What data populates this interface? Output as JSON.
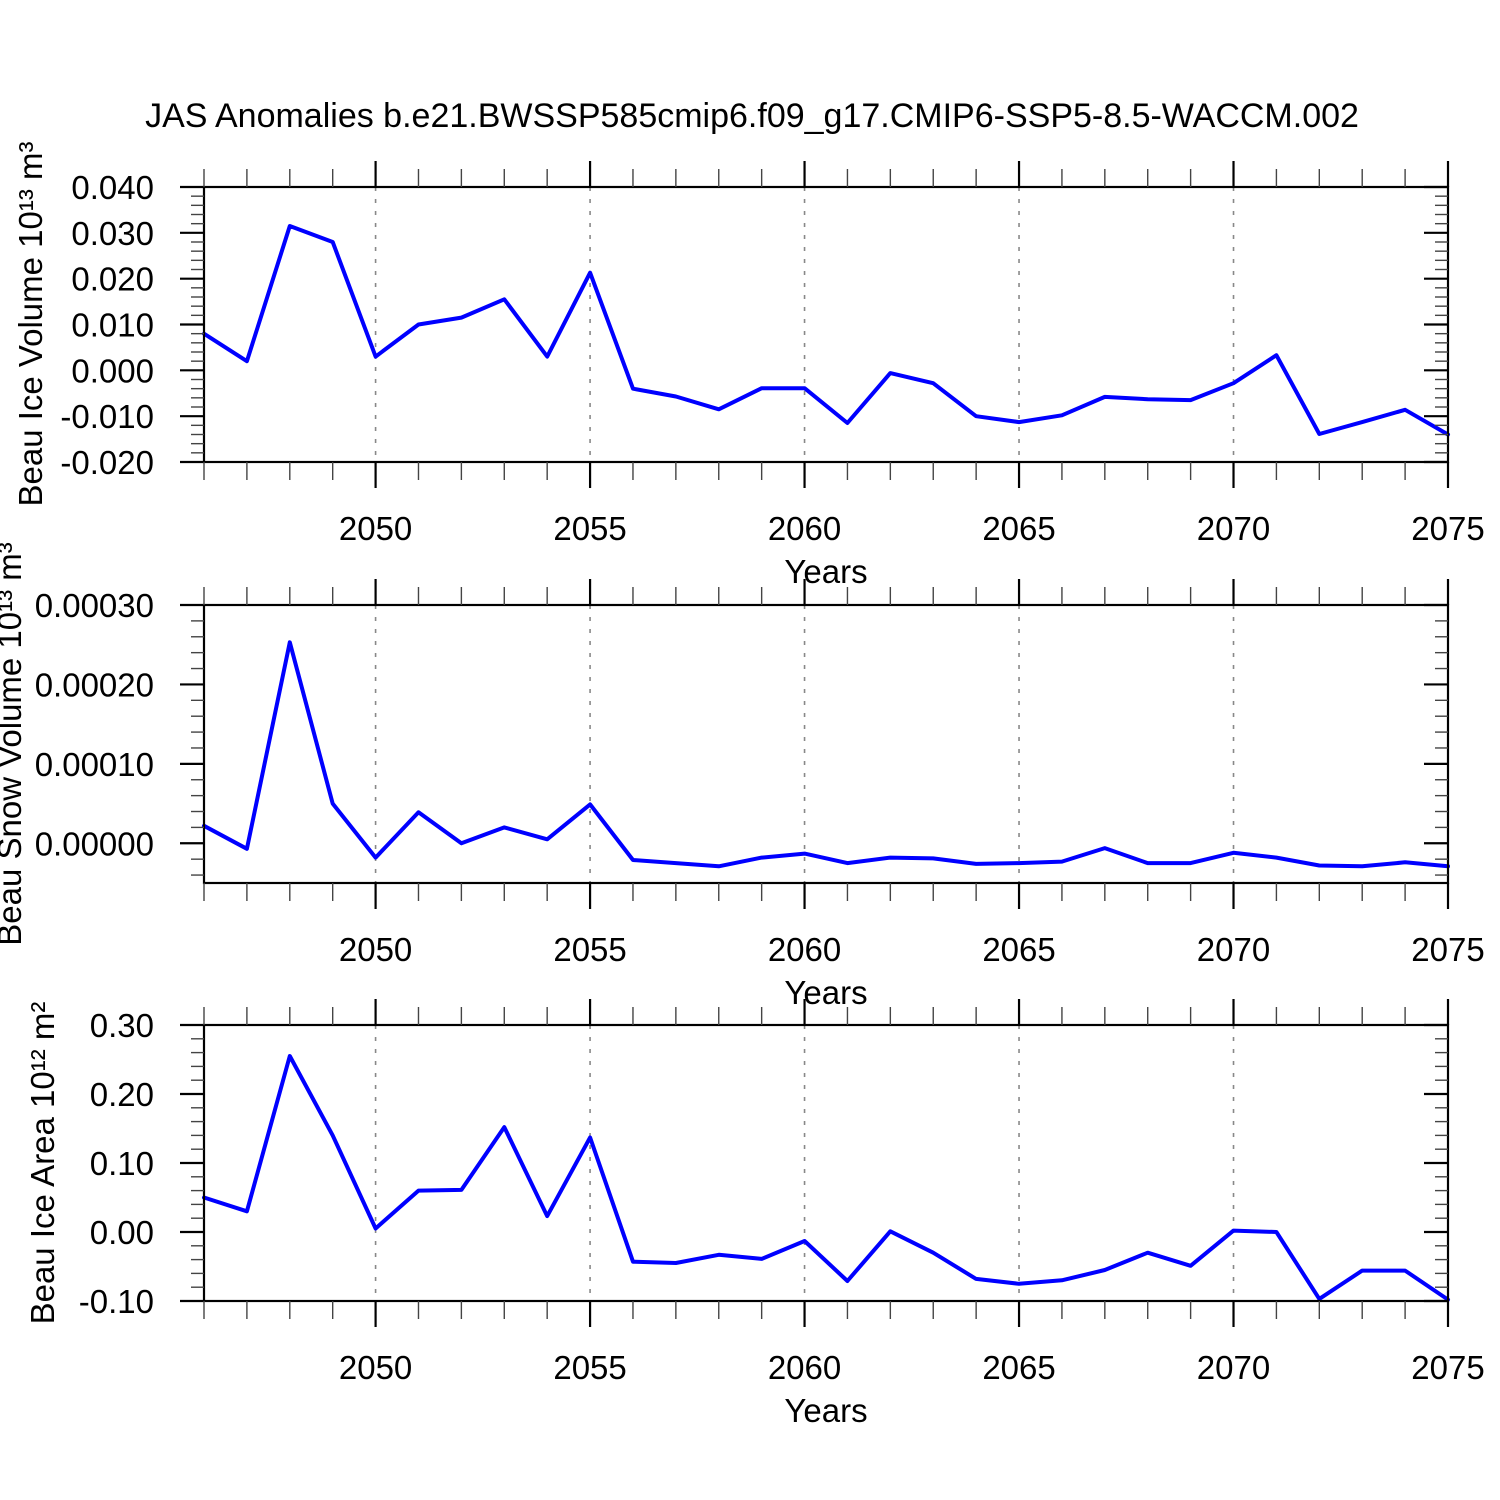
{
  "page": {
    "title": "JAS Anomalies b.e21.BWSSP585cmip6.f09_g17.CMIP6-SSP5-8.5-WACCM.002",
    "background": "#ffffff"
  },
  "chart_data": [
    {
      "type": "line",
      "series_name": "Beau Ice Volume anomaly",
      "ylabel": "Beau Ice Volume 10¹³ m³",
      "xlabel": "Years",
      "line_color": "#0000ff",
      "grid_color": "#888888",
      "grid_on": true,
      "legend": "none",
      "xlim": [
        2046,
        2075
      ],
      "ylim": [
        -0.02,
        0.04
      ],
      "x": [
        2046,
        2047,
        2048,
        2049,
        2050,
        2051,
        2052,
        2053,
        2054,
        2055,
        2056,
        2057,
        2058,
        2059,
        2060,
        2061,
        2062,
        2063,
        2064,
        2065,
        2066,
        2067,
        2068,
        2069,
        2070,
        2071,
        2072,
        2073,
        2074,
        2075
      ],
      "y": [
        0.008,
        0.002,
        0.0315,
        0.028,
        0.003,
        0.01,
        0.0115,
        0.0155,
        0.003,
        0.0213,
        -0.004,
        -0.0057,
        -0.0085,
        -0.0039,
        -0.0039,
        -0.0115,
        -0.0006,
        -0.0028,
        -0.01,
        -0.0113,
        -0.0098,
        -0.0058,
        -0.0063,
        -0.0065,
        -0.0028,
        0.0033,
        -0.0139,
        -0.0113,
        -0.0086,
        -0.014
      ],
      "ytick_values": [
        0.04,
        0.03,
        0.02,
        0.01,
        0,
        -0.01,
        -0.02
      ],
      "ytick_labels": [
        "0.040",
        "0.030",
        "0.020",
        "0.010",
        "0.000",
        "-0.010",
        "-0.020"
      ],
      "ytick_minor_step": 0.002,
      "xtick_values": [
        2050,
        2055,
        2060,
        2065,
        2070,
        2075
      ],
      "xtick_labels": [
        "2050",
        "2055",
        "2060",
        "2065",
        "2070",
        "2075"
      ],
      "xtick_minor_step": 1,
      "grid_x": [
        2050,
        2055,
        2060,
        2065,
        2070
      ]
    },
    {
      "type": "line",
      "series_name": "Beau Snow Volume anomaly",
      "ylabel": "Beau Snow Volume 10¹³ m³",
      "xlabel": "Years",
      "line_color": "#0000ff",
      "grid_color": "#888888",
      "grid_on": true,
      "legend": "none",
      "xlim": [
        2046,
        2075
      ],
      "ylim": [
        -5e-05,
        0.0003
      ],
      "x": [
        2046,
        2047,
        2048,
        2049,
        2050,
        2051,
        2052,
        2053,
        2054,
        2055,
        2056,
        2057,
        2058,
        2059,
        2060,
        2061,
        2062,
        2063,
        2064,
        2065,
        2066,
        2067,
        2068,
        2069,
        2070,
        2071,
        2072,
        2073,
        2074,
        2075
      ],
      "y": [
        2.2e-05,
        -7e-06,
        0.000253,
        5e-05,
        -1.8e-05,
        3.9e-05,
        0.0,
        2e-05,
        5e-06,
        4.9e-05,
        -2.1e-05,
        -2.5e-05,
        -2.9e-05,
        -1.8e-05,
        -1.3e-05,
        -2.5e-05,
        -1.8e-05,
        -1.9e-05,
        -2.6e-05,
        -2.5e-05,
        -2.3e-05,
        -6e-06,
        -2.5e-05,
        -2.5e-05,
        -1.2e-05,
        -1.8e-05,
        -2.8e-05,
        -2.9e-05,
        -2.4e-05,
        -2.9e-05
      ],
      "ytick_values": [
        0.0003,
        0.0002,
        0.0001,
        0
      ],
      "ytick_labels": [
        "0.00030",
        "0.00020",
        "0.00010",
        "0.00000"
      ],
      "ytick_minor_step": 2e-05,
      "xtick_values": [
        2050,
        2055,
        2060,
        2065,
        2070,
        2075
      ],
      "xtick_labels": [
        "2050",
        "2055",
        "2060",
        "2065",
        "2070",
        "2075"
      ],
      "xtick_minor_step": 1,
      "grid_x": [
        2050,
        2055,
        2060,
        2065,
        2070
      ]
    },
    {
      "type": "line",
      "series_name": "Beau Ice Area anomaly",
      "ylabel": "Beau Ice Area 10¹² m²",
      "xlabel": "Years",
      "line_color": "#0000ff",
      "grid_color": "#888888",
      "grid_on": true,
      "legend": "none",
      "xlim": [
        2046,
        2075
      ],
      "ylim": [
        -0.1,
        0.3
      ],
      "x": [
        2046,
        2047,
        2048,
        2049,
        2050,
        2051,
        2052,
        2053,
        2054,
        2055,
        2056,
        2057,
        2058,
        2059,
        2060,
        2061,
        2062,
        2063,
        2064,
        2065,
        2066,
        2067,
        2068,
        2069,
        2070,
        2071,
        2072,
        2073,
        2074,
        2075
      ],
      "y": [
        0.05,
        0.03,
        0.255,
        0.14,
        0.005,
        0.06,
        0.061,
        0.152,
        0.023,
        0.137,
        -0.043,
        -0.045,
        -0.033,
        -0.039,
        -0.013,
        -0.071,
        0.001,
        -0.03,
        -0.068,
        -0.075,
        -0.07,
        -0.055,
        -0.03,
        -0.049,
        0.002,
        0.0,
        -0.097,
        -0.056,
        -0.056,
        -0.098
      ],
      "ytick_values": [
        0.3,
        0.2,
        0.1,
        0,
        -0.1
      ],
      "ytick_labels": [
        "0.30",
        "0.20",
        "0.10",
        "0.00",
        "-0.10"
      ],
      "ytick_minor_step": 0.02,
      "xtick_values": [
        2050,
        2055,
        2060,
        2065,
        2070,
        2075
      ],
      "xtick_labels": [
        "2050",
        "2055",
        "2060",
        "2065",
        "2070",
        "2075"
      ],
      "xtick_minor_step": 1,
      "grid_x": [
        2050,
        2055,
        2060,
        2065,
        2070
      ]
    }
  ]
}
